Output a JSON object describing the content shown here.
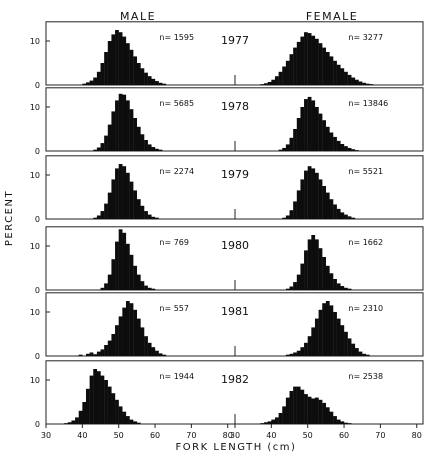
{
  "chart_data": {
    "type": "bar",
    "subtype": "histogram-small-multiples",
    "column_titles": [
      "MALE",
      "FEMALE"
    ],
    "ylabel": "PERCENT",
    "xlabel": "FORK LENGTH (cm)",
    "xlim": [
      30,
      82
    ],
    "ylim": [
      0,
      13
    ],
    "bin_width_cm": 1,
    "x_ticks": [
      30,
      40,
      50,
      60,
      70,
      80
    ],
    "x_tick_labels_male": [
      "30",
      "40",
      "50",
      "60",
      "70",
      "80"
    ],
    "x_tick_labels_female": [
      "30",
      "40",
      "50",
      "60",
      "70",
      "80"
    ],
    "y_ticks": [
      0,
      10
    ],
    "grid": false,
    "panels": [
      {
        "year": "1977",
        "male": {
          "n_label": "n= 1595",
          "x_start": 40,
          "values": [
            0.3,
            0.6,
            1,
            1.7,
            3,
            5,
            7.5,
            10,
            11.5,
            12.5,
            12,
            11,
            9.5,
            8,
            6.5,
            5,
            3.8,
            2.8,
            2,
            1.4,
            0.9,
            0.5,
            0.3
          ]
        },
        "female": {
          "n_label": "n= 3277",
          "x_start": 37,
          "values": [
            0.2,
            0.4,
            0.7,
            1.2,
            2,
            3,
            4.2,
            5.5,
            7,
            8.5,
            9.8,
            11,
            12,
            11.8,
            11.2,
            10.5,
            9.5,
            8.5,
            7.5,
            6.5,
            5.5,
            4.6,
            3.8,
            3,
            2.3,
            1.7,
            1.2,
            0.8,
            0.5,
            0.3,
            0.2
          ]
        }
      },
      {
        "year": "1978",
        "male": {
          "n_label": "n= 5685",
          "x_start": 43,
          "values": [
            0.3,
            0.8,
            1.8,
            3.5,
            6,
            9,
            11.5,
            13,
            12.8,
            11.5,
            9.5,
            7.5,
            5.5,
            3.8,
            2.5,
            1.5,
            0.9,
            0.5,
            0.3
          ]
        },
        "female": {
          "n_label": "n= 13846",
          "x_start": 42,
          "values": [
            0.3,
            0.7,
            1.5,
            3,
            5,
            7.5,
            10,
            11.8,
            12.3,
            11.5,
            10,
            8.5,
            7,
            5.5,
            4.2,
            3.2,
            2.3,
            1.6,
            1.1,
            0.7,
            0.4,
            0.2
          ]
        }
      },
      {
        "year": "1979",
        "male": {
          "n_label": "n= 2274",
          "x_start": 43,
          "values": [
            0.3,
            0.8,
            1.8,
            3.5,
            6,
            9,
            11.5,
            12.5,
            12,
            10.5,
            8.5,
            6.5,
            4.5,
            3,
            1.8,
            1,
            0.5,
            0.3
          ]
        },
        "female": {
          "n_label": "n= 5521",
          "x_start": 43,
          "values": [
            0.3,
            0.8,
            2,
            4,
            6.5,
            9,
            11,
            12,
            11.5,
            10.5,
            9,
            7.5,
            6,
            4.5,
            3.3,
            2.3,
            1.5,
            1,
            0.6,
            0.3
          ]
        }
      },
      {
        "year": "1980",
        "male": {
          "n_label": "n= 769",
          "x_start": 45,
          "values": [
            0.5,
            1.5,
            3.5,
            7,
            11,
            13.8,
            13,
            10.5,
            8,
            5.5,
            3.5,
            2,
            1,
            0.5,
            0.3
          ]
        },
        "female": {
          "n_label": "n= 1662",
          "x_start": 44,
          "values": [
            0.3,
            0.8,
            1.8,
            3.5,
            6,
            9,
            11.5,
            12.5,
            11.5,
            9.5,
            7.5,
            5.5,
            3.8,
            2.5,
            1.5,
            0.9,
            0.5,
            0.3
          ]
        }
      },
      {
        "year": "1981",
        "male": {
          "n_label": "n= 557",
          "x_start": 39,
          "values": [
            0.3,
            0,
            0.5,
            0.8,
            0.4,
            1,
            1.5,
            2.5,
            3.5,
            5,
            7,
            9,
            11,
            12.5,
            12,
            10.5,
            8.5,
            6.5,
            4.5,
            3,
            2,
            1.2,
            0.6,
            0.3
          ]
        },
        "female": {
          "n_label": "n= 2310",
          "x_start": 44,
          "values": [
            0.3,
            0.5,
            0.8,
            1.2,
            2,
            3,
            4.5,
            6.5,
            8.5,
            10.5,
            12,
            12.5,
            11.5,
            10,
            8.5,
            7,
            5.5,
            4,
            2.8,
            1.8,
            1,
            0.5,
            0.3
          ]
        }
      },
      {
        "year": "1982",
        "male": {
          "n_label": "n= 1944",
          "x_start": 35,
          "values": [
            0.2,
            0.4,
            0.8,
            1.5,
            3,
            5,
            8,
            11,
            12.5,
            12,
            11,
            10,
            8.5,
            7,
            5.5,
            4,
            2.8,
            1.8,
            1,
            0.6,
            0.3
          ]
        },
        "female": {
          "n_label": "n= 2538",
          "x_start": 37,
          "values": [
            0.2,
            0.4,
            0.6,
            1,
            1.5,
            2.5,
            4,
            6,
            7.5,
            8.5,
            8.5,
            7.8,
            6.8,
            6.2,
            5.8,
            6,
            5.5,
            4.8,
            3.8,
            2.8,
            1.8,
            1,
            0.6,
            0.3,
            0.2
          ]
        }
      }
    ]
  }
}
